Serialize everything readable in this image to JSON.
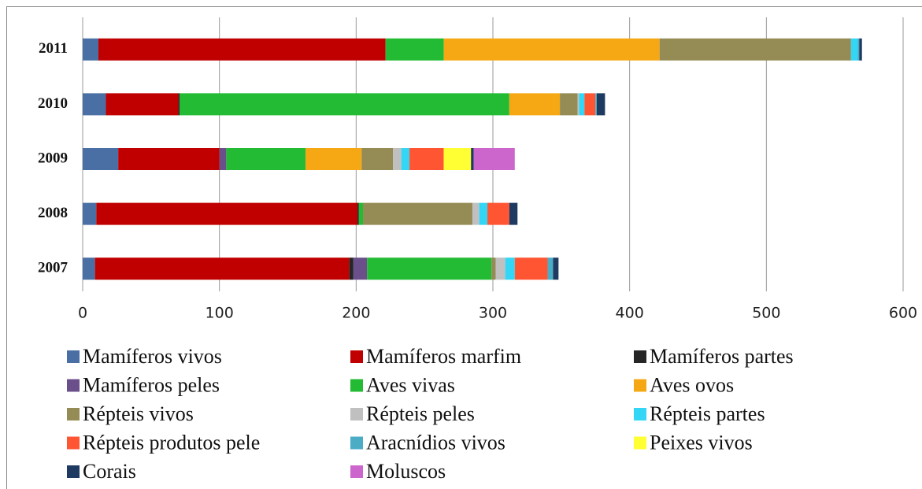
{
  "chart_data": {
    "type": "bar",
    "orientation": "horizontal",
    "stacked": true,
    "grid": true,
    "categories": [
      "2011",
      "2010",
      "2009",
      "2008",
      "2007"
    ],
    "xlim": [
      0,
      600
    ],
    "xticks": [
      0,
      100,
      200,
      300,
      400,
      500,
      600
    ],
    "series": [
      {
        "name": "Mamíferos vivos",
        "color": "#4a6fa5",
        "values": [
          11.5,
          17,
          26,
          10,
          9
        ]
      },
      {
        "name": "Mamíferos marfim",
        "color": "#c00000",
        "values": [
          210,
          53,
          74,
          191,
          186
        ]
      },
      {
        "name": "Mamíferos partes",
        "color": "#262626",
        "values": [
          0,
          1,
          0,
          1,
          3
        ]
      },
      {
        "name": "Mamíferos peles",
        "color": "#6b4f8a",
        "values": [
          0,
          0,
          5,
          0,
          10
        ]
      },
      {
        "name": "Aves vivas",
        "color": "#22bb33",
        "values": [
          42.6,
          241,
          58,
          3,
          91
        ]
      },
      {
        "name": "Aves ovos",
        "color": "#f5a814",
        "values": [
          157.8,
          37,
          41,
          0,
          0
        ]
      },
      {
        "name": "Répteis vivos",
        "color": "#958b55",
        "values": [
          140,
          13,
          23,
          80,
          3
        ]
      },
      {
        "name": "Répteis peles",
        "color": "#c0c0c0",
        "values": [
          0,
          1,
          6,
          5,
          7
        ]
      },
      {
        "name": "Répteis partes",
        "color": "#33d6f5",
        "values": [
          5,
          4,
          6,
          6,
          7
        ]
      },
      {
        "name": "Répteis produtos pele",
        "color": "#ff5533",
        "values": [
          0,
          8,
          25,
          16,
          24
        ]
      },
      {
        "name": "Aracnídios vivos",
        "color": "#4bacc6",
        "values": [
          1,
          1,
          0,
          0,
          4
        ]
      },
      {
        "name": "Peixes vivos",
        "color": "#ffff33",
        "values": [
          0,
          0,
          20,
          0,
          0
        ]
      },
      {
        "name": "Corais",
        "color": "#1f3a60",
        "values": [
          2,
          6,
          2,
          6,
          4
        ]
      },
      {
        "name": "Moluscos",
        "color": "#cc66cc",
        "values": [
          0,
          0,
          30,
          0,
          0
        ]
      }
    ]
  }
}
